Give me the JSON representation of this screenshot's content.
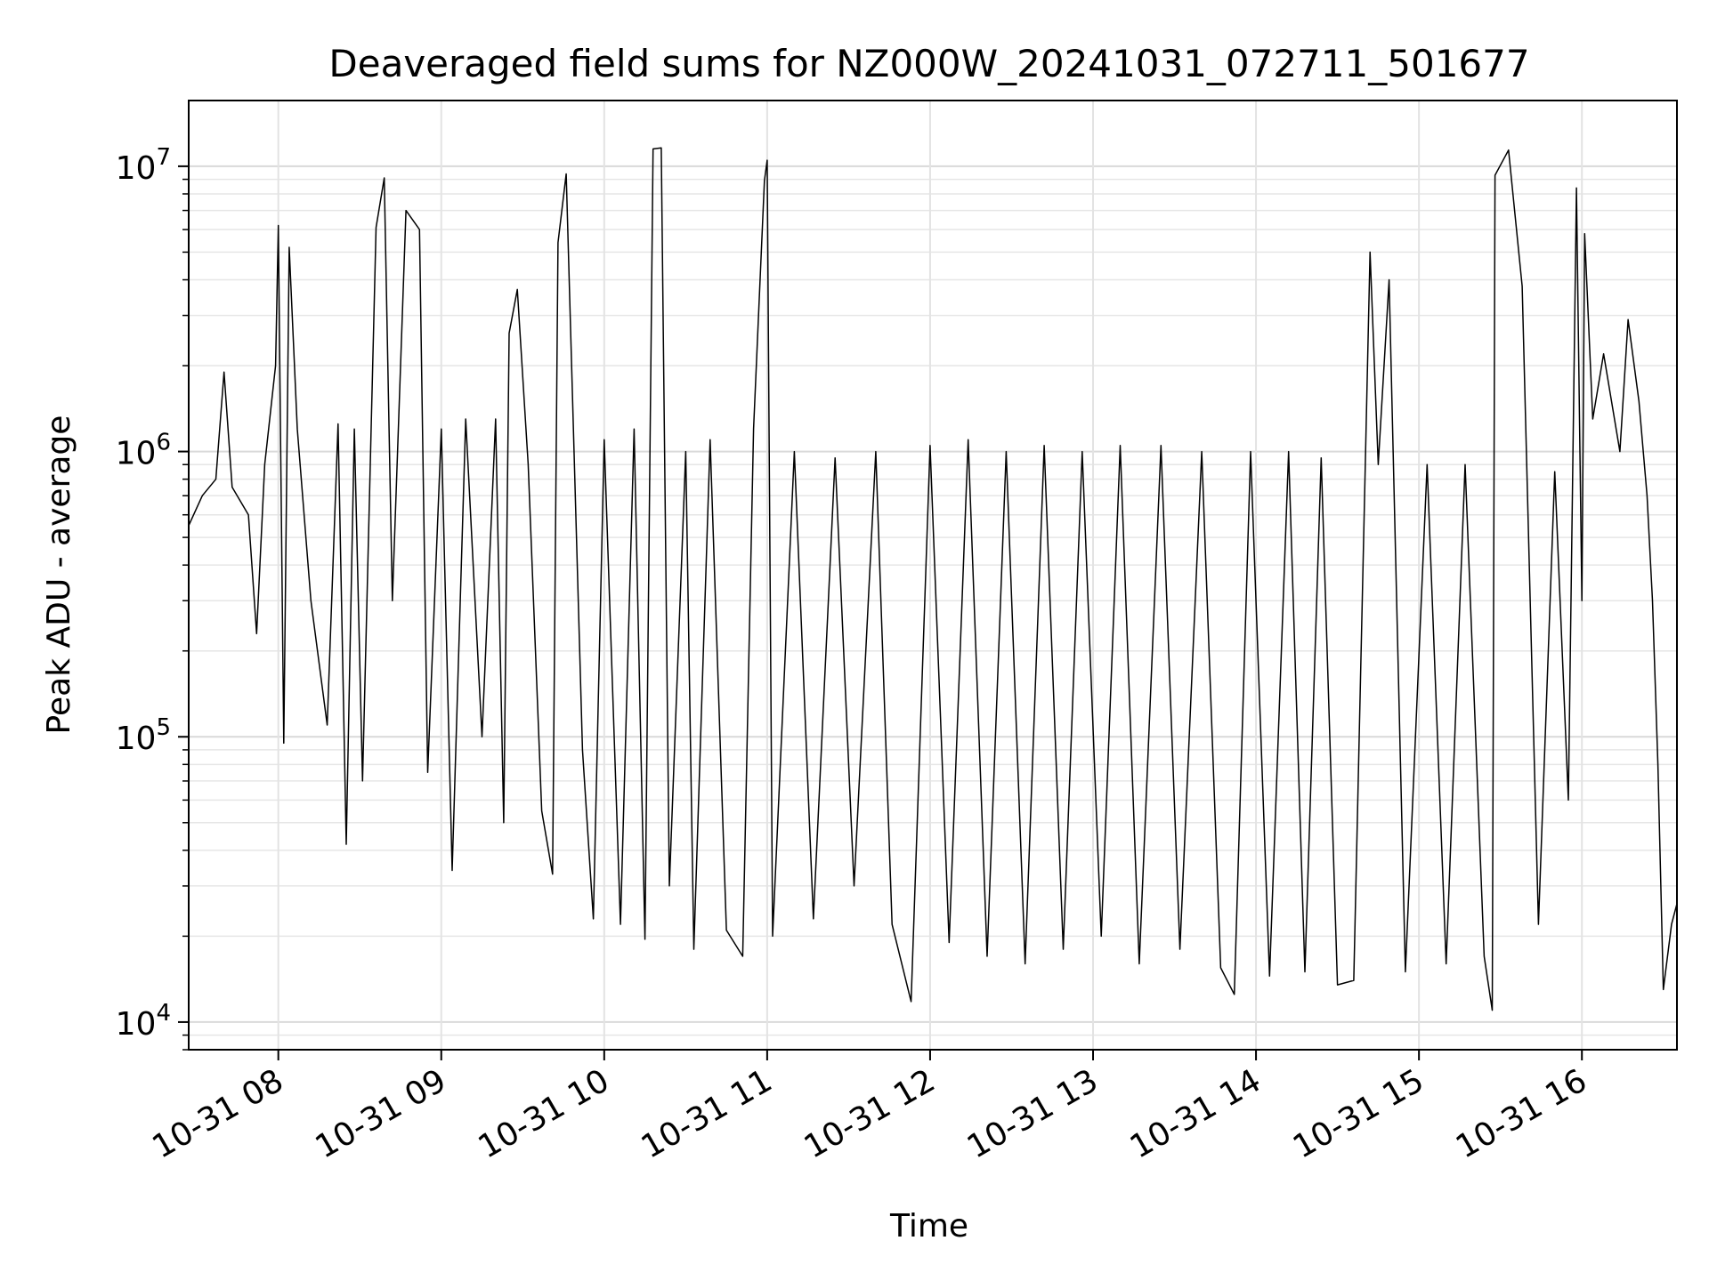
{
  "chart_data": {
    "type": "line",
    "title": "Deaveraged field sums for NZ000W_20241031_072711_501677",
    "xlabel": "Time",
    "ylabel": "Peak ADU - average",
    "yscale": "log",
    "xlim": [
      "2024-10-31 07:27",
      "2024-10-31 16:35"
    ],
    "ylim": [
      8000,
      17000000
    ],
    "grid": true,
    "line_color": "#000000",
    "x_ticks": [
      {
        "value": "2024-10-31 08:00",
        "label": "10-31 08"
      },
      {
        "value": "2024-10-31 09:00",
        "label": "10-31 09"
      },
      {
        "value": "2024-10-31 10:00",
        "label": "10-31 10"
      },
      {
        "value": "2024-10-31 11:00",
        "label": "10-31 11"
      },
      {
        "value": "2024-10-31 12:00",
        "label": "10-31 12"
      },
      {
        "value": "2024-10-31 13:00",
        "label": "10-31 13"
      },
      {
        "value": "2024-10-31 14:00",
        "label": "10-31 14"
      },
      {
        "value": "2024-10-31 15:00",
        "label": "10-31 15"
      },
      {
        "value": "2024-10-31 16:00",
        "label": "10-31 16"
      }
    ],
    "y_ticks": [
      {
        "value": 10000,
        "base": "10",
        "exp": "4"
      },
      {
        "value": 100000,
        "base": "10",
        "exp": "5"
      },
      {
        "value": 1000000,
        "base": "10",
        "exp": "6"
      },
      {
        "value": 10000000,
        "base": "10",
        "exp": "7"
      }
    ],
    "series": [
      {
        "points": [
          [
            "2024-10-31 07:27",
            550000
          ],
          [
            "2024-10-31 07:32",
            700000
          ],
          [
            "2024-10-31 07:37",
            800000
          ],
          [
            "2024-10-31 07:40",
            1900000
          ],
          [
            "2024-10-31 07:43",
            750000
          ],
          [
            "2024-10-31 07:49",
            600000
          ],
          [
            "2024-10-31 07:52",
            230000
          ],
          [
            "2024-10-31 07:55",
            900000
          ],
          [
            "2024-10-31 07:59",
            2000000
          ],
          [
            "2024-10-31 08:00",
            6200000
          ],
          [
            "2024-10-31 08:02",
            95000
          ],
          [
            "2024-10-31 08:04",
            5200000
          ],
          [
            "2024-10-31 08:07",
            1200000
          ],
          [
            "2024-10-31 08:12",
            300000
          ],
          [
            "2024-10-31 08:18",
            110000
          ],
          [
            "2024-10-31 08:22",
            1250000
          ],
          [
            "2024-10-31 08:25",
            42000
          ],
          [
            "2024-10-31 08:28",
            1200000
          ],
          [
            "2024-10-31 08:31",
            70000
          ],
          [
            "2024-10-31 08:36",
            6100000
          ],
          [
            "2024-10-31 08:39",
            9100000
          ],
          [
            "2024-10-31 08:42",
            300000
          ],
          [
            "2024-10-31 08:47",
            7000000
          ],
          [
            "2024-10-31 08:52",
            6000000
          ],
          [
            "2024-10-31 08:55",
            75000
          ],
          [
            "2024-10-31 09:00",
            1200000
          ],
          [
            "2024-10-31 09:04",
            34000
          ],
          [
            "2024-10-31 09:09",
            1300000
          ],
          [
            "2024-10-31 09:15",
            100000
          ],
          [
            "2024-10-31 09:20",
            1300000
          ],
          [
            "2024-10-31 09:23",
            50000
          ],
          [
            "2024-10-31 09:25",
            2600000
          ],
          [
            "2024-10-31 09:28",
            3700000
          ],
          [
            "2024-10-31 09:32",
            900000
          ],
          [
            "2024-10-31 09:37",
            55000
          ],
          [
            "2024-10-31 09:41",
            33000
          ],
          [
            "2024-10-31 09:43",
            5400000
          ],
          [
            "2024-10-31 09:46",
            9400000
          ],
          [
            "2024-10-31 09:52",
            90000
          ],
          [
            "2024-10-31 09:56",
            23000
          ],
          [
            "2024-10-31 10:00",
            1100000
          ],
          [
            "2024-10-31 10:06",
            22000
          ],
          [
            "2024-10-31 10:11",
            1200000
          ],
          [
            "2024-10-31 10:15",
            19500
          ],
          [
            "2024-10-31 10:18",
            11500000
          ],
          [
            "2024-10-31 10:21",
            11600000
          ],
          [
            "2024-10-31 10:24",
            30000
          ],
          [
            "2024-10-31 10:30",
            1000000
          ],
          [
            "2024-10-31 10:33",
            18000
          ],
          [
            "2024-10-31 10:39",
            1100000
          ],
          [
            "2024-10-31 10:45",
            21000
          ],
          [
            "2024-10-31 10:51",
            17000
          ],
          [
            "2024-10-31 10:55",
            1200000
          ],
          [
            "2024-10-31 10:59",
            8900000
          ],
          [
            "2024-10-31 11:00",
            10500000
          ],
          [
            "2024-10-31 11:02",
            20000
          ],
          [
            "2024-10-31 11:10",
            1000000
          ],
          [
            "2024-10-31 11:17",
            23000
          ],
          [
            "2024-10-31 11:25",
            950000
          ],
          [
            "2024-10-31 11:32",
            30000
          ],
          [
            "2024-10-31 11:40",
            1000000
          ],
          [
            "2024-10-31 11:46",
            22000
          ],
          [
            "2024-10-31 11:53",
            11800
          ],
          [
            "2024-10-31 12:00",
            1050000
          ],
          [
            "2024-10-31 12:07",
            19000
          ],
          [
            "2024-10-31 12:14",
            1100000
          ],
          [
            "2024-10-31 12:21",
            17000
          ],
          [
            "2024-10-31 12:28",
            1000000
          ],
          [
            "2024-10-31 12:35",
            16000
          ],
          [
            "2024-10-31 12:42",
            1050000
          ],
          [
            "2024-10-31 12:49",
            18000
          ],
          [
            "2024-10-31 12:56",
            1000000
          ],
          [
            "2024-10-31 13:03",
            20000
          ],
          [
            "2024-10-31 13:10",
            1050000
          ],
          [
            "2024-10-31 13:17",
            16000
          ],
          [
            "2024-10-31 13:25",
            1050000
          ],
          [
            "2024-10-31 13:32",
            18000
          ],
          [
            "2024-10-31 13:40",
            1000000
          ],
          [
            "2024-10-31 13:47",
            15500
          ],
          [
            "2024-10-31 13:52",
            12500
          ],
          [
            "2024-10-31 13:58",
            1000000
          ],
          [
            "2024-10-31 14:05",
            14500
          ],
          [
            "2024-10-31 14:12",
            1000000
          ],
          [
            "2024-10-31 14:18",
            15000
          ],
          [
            "2024-10-31 14:24",
            950000
          ],
          [
            "2024-10-31 14:30",
            13500
          ],
          [
            "2024-10-31 14:36",
            14000
          ],
          [
            "2024-10-31 14:42",
            5000000
          ],
          [
            "2024-10-31 14:45",
            900000
          ],
          [
            "2024-10-31 14:49",
            4000000
          ],
          [
            "2024-10-31 14:55",
            15000
          ],
          [
            "2024-10-31 15:03",
            900000
          ],
          [
            "2024-10-31 15:10",
            16000
          ],
          [
            "2024-10-31 15:17",
            900000
          ],
          [
            "2024-10-31 15:24",
            17000
          ],
          [
            "2024-10-31 15:27",
            11000
          ],
          [
            "2024-10-31 15:28",
            9300000
          ],
          [
            "2024-10-31 15:33",
            11400000
          ],
          [
            "2024-10-31 15:38",
            3800000
          ],
          [
            "2024-10-31 15:44",
            22000
          ],
          [
            "2024-10-31 15:50",
            850000
          ],
          [
            "2024-10-31 15:55",
            60000
          ],
          [
            "2024-10-31 15:58",
            8400000
          ],
          [
            "2024-10-31 16:00",
            300000
          ],
          [
            "2024-10-31 16:01",
            5800000
          ],
          [
            "2024-10-31 16:04",
            1300000
          ],
          [
            "2024-10-31 16:08",
            2200000
          ],
          [
            "2024-10-31 16:14",
            1000000
          ],
          [
            "2024-10-31 16:17",
            2900000
          ],
          [
            "2024-10-31 16:21",
            1500000
          ],
          [
            "2024-10-31 16:24",
            700000
          ],
          [
            "2024-10-31 16:26",
            300000
          ],
          [
            "2024-10-31 16:28",
            80000
          ],
          [
            "2024-10-31 16:30",
            13000
          ],
          [
            "2024-10-31 16:33",
            22000
          ],
          [
            "2024-10-31 16:35",
            26000
          ]
        ]
      }
    ]
  }
}
